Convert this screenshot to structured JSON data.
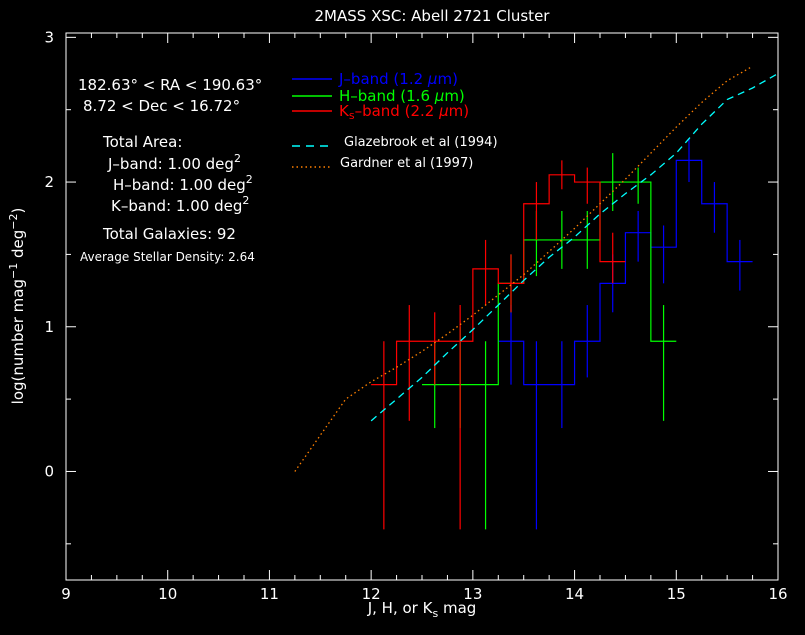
{
  "chart_data": {
    "type": "line",
    "title": "2MASS XSC: Abell 2721 Cluster",
    "xlabel": "J, H, or Ks mag",
    "ylabel": "log(number mag-1 deg-2)",
    "xlim": [
      9,
      16
    ],
    "ylim": [
      -0.75,
      3.03
    ],
    "x_ticks": [
      "9",
      "10",
      "11",
      "12",
      "13",
      "14",
      "15",
      "16"
    ],
    "y_ticks": [
      "0",
      "1",
      "2",
      "3"
    ],
    "annotations": {
      "ra_range": "182.63° < RA < 190.63°",
      "dec_range": "8.72 < Dec < 16.72°",
      "total_area": "Total Area:",
      "j_area": "J–band: 1.00 deg2",
      "h_area": "H–band: 1.00 deg2",
      "k_area": "K–band: 1.00 deg2",
      "total_galaxies": "Total Galaxies: 92",
      "stellar_density": "Average Stellar Density: 2.64"
    },
    "legend": [
      {
        "label": "J–band (1.2 μm)",
        "color": "#0000ff"
      },
      {
        "label": "H–band (1.6 μm)",
        "color": "#00ff00"
      },
      {
        "label": "Ks–band (2.2 μm)",
        "color": "#ff0000"
      },
      {
        "label": "Glazebrook et al (1994)",
        "color": "#00ffff"
      },
      {
        "label": "Gardner et al (1997)",
        "color": "#ff8000"
      }
    ],
    "series": [
      {
        "name": "J–band (1.2 μm)",
        "color": "#0000ff",
        "type": "step",
        "x": [
          13.375,
          13.625,
          13.875,
          14.125,
          14.375,
          14.625,
          14.875,
          15.125,
          15.375,
          15.625
        ],
        "y": [
          0.9,
          0.6,
          0.6,
          0.9,
          1.3,
          1.65,
          1.55,
          2.15,
          1.85,
          1.45
        ],
        "errors": [
          [
            0.6,
            1.15
          ],
          [
            -0.4,
            0.9
          ],
          [
            0.3,
            0.9
          ],
          [
            0.65,
            1.15
          ],
          [
            1.1,
            1.5
          ],
          [
            1.45,
            1.8
          ],
          [
            1.3,
            1.7
          ],
          [
            2.0,
            2.3
          ],
          [
            1.65,
            2.0
          ],
          [
            1.25,
            1.6
          ]
        ]
      },
      {
        "name": "H–band (1.6 μm)",
        "color": "#00ff00",
        "type": "step",
        "x": [
          12.625,
          12.875,
          13.125,
          13.375,
          13.625,
          13.875,
          14.125,
          14.375,
          14.625,
          14.875
        ],
        "y": [
          0.6,
          0.6,
          0.6,
          1.3,
          1.6,
          1.6,
          1.6,
          2.0,
          2.0,
          0.9
        ],
        "errors": [
          [
            0.3,
            0.9
          ],
          [
            0.3,
            1.0
          ],
          [
            -0.4,
            0.9
          ],
          [
            1.1,
            1.5
          ],
          [
            1.35,
            1.8
          ],
          [
            1.4,
            1.8
          ],
          [
            1.4,
            1.8
          ],
          [
            1.8,
            2.2
          ],
          [
            1.85,
            2.1
          ],
          [
            0.35,
            1.15
          ]
        ]
      },
      {
        "name": "Ks–band (2.2 μm)",
        "color": "#ff0000",
        "type": "step",
        "x": [
          12.125,
          12.375,
          12.625,
          12.875,
          13.125,
          13.375,
          13.625,
          13.875,
          14.125,
          14.375
        ],
        "y": [
          0.6,
          0.9,
          0.9,
          0.9,
          1.4,
          1.3,
          1.85,
          2.05,
          2.0,
          1.45
        ],
        "errors": [
          [
            -0.4,
            0.9
          ],
          [
            0.35,
            1.15
          ],
          [
            0.6,
            1.1
          ],
          [
            -0.4,
            1.15
          ],
          [
            1.15,
            1.6
          ],
          [
            1.1,
            1.5
          ],
          [
            1.6,
            2.0
          ],
          [
            1.95,
            2.15
          ],
          [
            1.85,
            2.1
          ],
          [
            1.3,
            1.65
          ]
        ]
      },
      {
        "name": "Glazebrook et al (1994)",
        "color": "#00ffff",
        "type": "dashed",
        "x": [
          12.0,
          12.25,
          12.5,
          12.75,
          13.0,
          13.25,
          13.5,
          13.75,
          14.0,
          14.25,
          14.5,
          14.75,
          15.0,
          15.25,
          15.5,
          15.75,
          16.0
        ],
        "y": [
          0.35,
          0.5,
          0.65,
          0.82,
          0.98,
          1.15,
          1.32,
          1.48,
          1.62,
          1.78,
          1.92,
          2.05,
          2.2,
          2.4,
          2.57,
          2.65,
          2.75
        ]
      },
      {
        "name": "Gardner et al (1997)",
        "color": "#ff8000",
        "type": "dotted",
        "x": [
          11.25,
          11.5,
          11.75,
          12.0,
          12.25,
          12.5,
          12.75,
          13.0,
          13.25,
          13.5,
          13.75,
          14.0,
          14.25,
          14.5,
          14.75,
          15.0,
          15.25,
          15.5,
          15.75
        ],
        "y": [
          0.0,
          0.25,
          0.5,
          0.62,
          0.72,
          0.83,
          0.95,
          1.08,
          1.22,
          1.36,
          1.52,
          1.68,
          1.85,
          2.02,
          2.2,
          2.38,
          2.55,
          2.7,
          2.8
        ]
      }
    ]
  }
}
